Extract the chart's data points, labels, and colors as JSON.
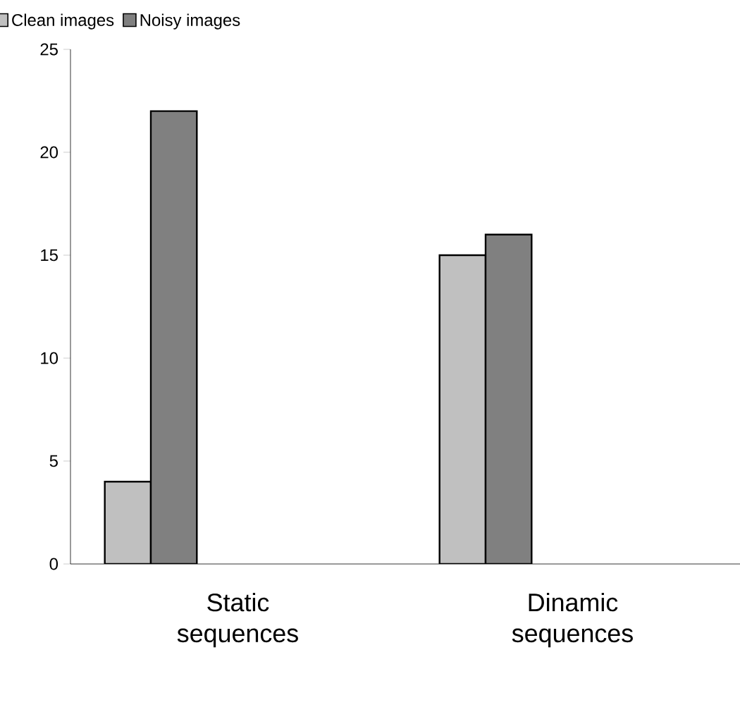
{
  "chart_data": {
    "type": "bar",
    "categories": [
      "Static sequences",
      "Dinamic sequences"
    ],
    "series": [
      {
        "name": "Clean images",
        "color": "#c0c0c0",
        "values": [
          4,
          15
        ]
      },
      {
        "name": "Noisy  images",
        "color": "#808080",
        "values": [
          22,
          16
        ]
      }
    ],
    "ylim": [
      0,
      25
    ],
    "yticks": [
      0,
      5,
      10,
      15,
      20,
      25
    ],
    "grid": false,
    "legend": "top left"
  }
}
